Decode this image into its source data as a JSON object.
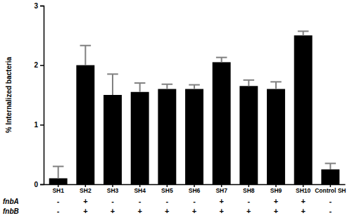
{
  "chart_data": {
    "type": "bar",
    "y_label": "% Internalized bacteria",
    "categories": [
      "SH1",
      "SH2",
      "SH3",
      "SH4",
      "SH5",
      "SH6",
      "SH7",
      "SH8",
      "SH9",
      "SH10",
      "Control SH"
    ],
    "values": [
      0.1,
      2.0,
      1.5,
      1.55,
      1.6,
      1.6,
      2.05,
      1.65,
      1.6,
      2.5,
      0.25
    ],
    "errors": [
      0.2,
      0.33,
      0.35,
      0.15,
      0.08,
      0.07,
      0.08,
      0.1,
      0.12,
      0.07,
      0.1
    ],
    "color": "#000000",
    "ylim": [
      0,
      3
    ],
    "yticks": [
      0,
      1,
      2,
      3
    ],
    "grid": false,
    "gene_rows": [
      {
        "name": "fnbA",
        "marks": [
          "-",
          "+",
          "-",
          "-",
          "-",
          "-",
          "+",
          "-",
          "+",
          "+",
          "-"
        ]
      },
      {
        "name": "fnbB",
        "marks": [
          "-",
          "+",
          "+",
          "+",
          "+",
          "+",
          "+",
          "+",
          "+",
          "+",
          "-"
        ]
      }
    ]
  }
}
